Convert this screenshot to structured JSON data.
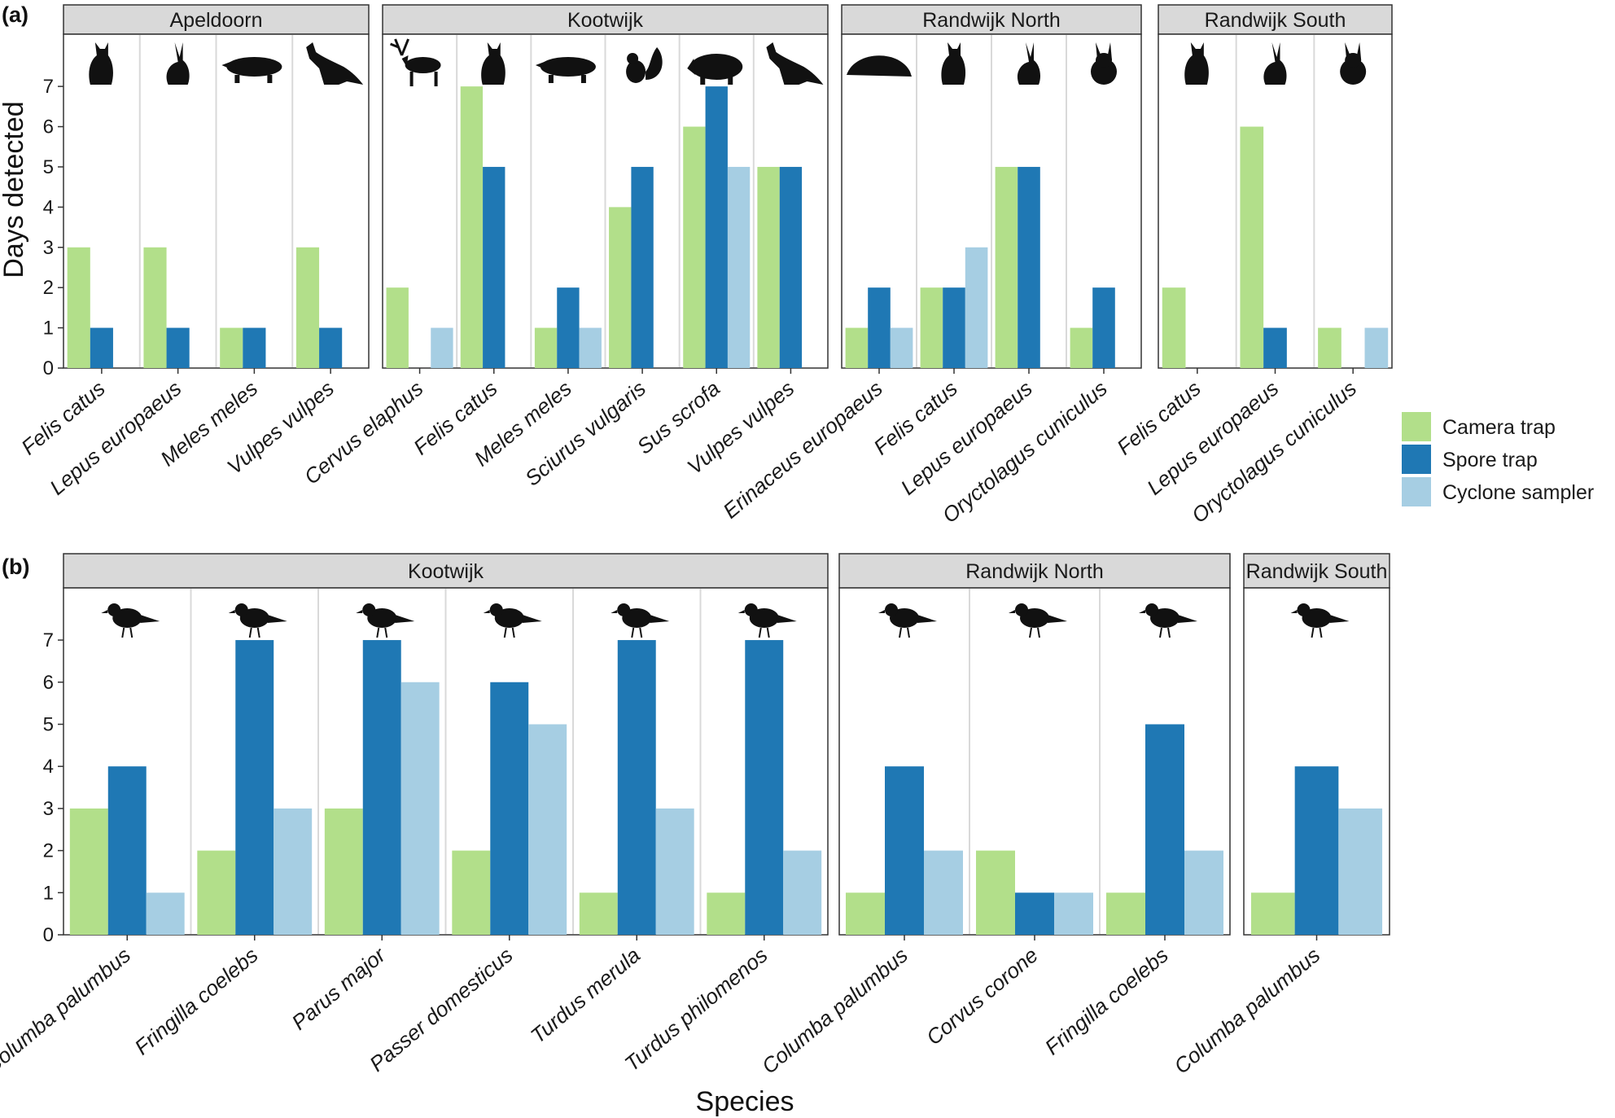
{
  "colors": {
    "camera": "#b2df8a",
    "spore": "#1f78b4",
    "cyclone": "#a6cee3",
    "strip_bg": "#d9d9d9",
    "grid": "#d9d9d9"
  },
  "legend": {
    "items": [
      {
        "name": "Camera trap",
        "color": "#b2df8a"
      },
      {
        "name": "Spore trap",
        "color": "#1f78b4"
      },
      {
        "name": "Cyclone sampler",
        "color": "#a6cee3"
      }
    ]
  },
  "axes": {
    "y_title": "Days detected",
    "x_title": "Species"
  },
  "chart_data": [
    {
      "type": "bar",
      "panel_tag": "(a)",
      "ylabel": "Days detected",
      "ylim": [
        0,
        7
      ],
      "yticks": [
        0,
        1,
        2,
        3,
        4,
        5,
        6,
        7
      ],
      "series_names": [
        "Camera trap",
        "Spore trap",
        "Cyclone sampler"
      ],
      "facets": [
        {
          "site": "Apeldoorn",
          "categories": [
            "Felis catus",
            "Lepus europaeus",
            "Meles meles",
            "Vulpes vulpes"
          ],
          "icons": [
            "cat-icon",
            "hare-icon",
            "badger-icon",
            "fox-icon"
          ],
          "series": [
            {
              "name": "Camera trap",
              "values": [
                3,
                3,
                1,
                3
              ]
            },
            {
              "name": "Spore trap",
              "values": [
                1,
                1,
                1,
                1
              ]
            },
            {
              "name": "Cyclone sampler",
              "values": [
                0,
                0,
                0,
                0
              ]
            }
          ]
        },
        {
          "site": "Kootwijk",
          "categories": [
            "Cervus elaphus",
            "Felis catus",
            "Meles meles",
            "Sciurus vulgaris",
            "Sus scrofa",
            "Vulpes vulpes"
          ],
          "icons": [
            "deer-icon",
            "cat-icon",
            "badger-icon",
            "squirrel-icon",
            "boar-icon",
            "fox-icon"
          ],
          "series": [
            {
              "name": "Camera trap",
              "values": [
                2,
                7,
                1,
                4,
                6,
                5
              ]
            },
            {
              "name": "Spore trap",
              "values": [
                0,
                5,
                2,
                5,
                7,
                5
              ]
            },
            {
              "name": "Cyclone sampler",
              "values": [
                1,
                0,
                1,
                0,
                5,
                0
              ]
            }
          ]
        },
        {
          "site": "Randwijk North",
          "categories": [
            "Erinaceus europaeus",
            "Felis catus",
            "Lepus europaeus",
            "Oryctolagus cuniculus"
          ],
          "icons": [
            "hedgehog-icon",
            "cat-icon",
            "hare-icon",
            "rabbit-icon"
          ],
          "series": [
            {
              "name": "Camera trap",
              "values": [
                1,
                2,
                5,
                1
              ]
            },
            {
              "name": "Spore trap",
              "values": [
                2,
                2,
                5,
                2
              ]
            },
            {
              "name": "Cyclone sampler",
              "values": [
                1,
                3,
                0,
                0
              ]
            }
          ]
        },
        {
          "site": "Randwijk South",
          "categories": [
            "Felis catus",
            "Lepus europaeus",
            "Oryctolagus cuniculus"
          ],
          "icons": [
            "cat-icon",
            "hare-icon",
            "rabbit-icon"
          ],
          "series": [
            {
              "name": "Camera trap",
              "values": [
                2,
                6,
                1
              ]
            },
            {
              "name": "Spore trap",
              "values": [
                0,
                1,
                0
              ]
            },
            {
              "name": "Cyclone sampler",
              "values": [
                0,
                0,
                1
              ]
            }
          ]
        }
      ]
    },
    {
      "type": "bar",
      "panel_tag": "(b)",
      "xlabel": "Species",
      "ylim": [
        0,
        7
      ],
      "yticks": [
        0,
        1,
        2,
        3,
        4,
        5,
        6,
        7
      ],
      "series_names": [
        "Camera trap",
        "Spore trap",
        "Cyclone sampler"
      ],
      "facets": [
        {
          "site": "Kootwijk",
          "categories": [
            "Columba palumbus",
            "Fringilla coelebs",
            "Parus major",
            "Passer domesticus",
            "Turdus merula",
            "Turdus philomenos"
          ],
          "icons": [
            "pigeon-icon",
            "finch-icon",
            "tit-icon",
            "sparrow-icon",
            "blackbird-icon",
            "thrush-icon"
          ],
          "series": [
            {
              "name": "Camera trap",
              "values": [
                3,
                2,
                3,
                2,
                1,
                1
              ]
            },
            {
              "name": "Spore trap",
              "values": [
                4,
                7,
                7,
                6,
                7,
                7
              ]
            },
            {
              "name": "Cyclone sampler",
              "values": [
                1,
                3,
                6,
                5,
                3,
                2
              ]
            }
          ]
        },
        {
          "site": "Randwijk North",
          "categories": [
            "Columba palumbus",
            "Corvus corone",
            "Fringilla coelebs"
          ],
          "icons": [
            "pigeon-icon",
            "crow-icon",
            "finch-icon"
          ],
          "series": [
            {
              "name": "Camera trap",
              "values": [
                1,
                2,
                1
              ]
            },
            {
              "name": "Spore trap",
              "values": [
                4,
                1,
                5
              ]
            },
            {
              "name": "Cyclone sampler",
              "values": [
                2,
                1,
                2
              ]
            }
          ]
        },
        {
          "site": "Randwijk South",
          "categories": [
            "Columba palumbus"
          ],
          "icons": [
            "pigeon-icon"
          ],
          "series": [
            {
              "name": "Camera trap",
              "values": [
                1
              ]
            },
            {
              "name": "Spore trap",
              "values": [
                4
              ]
            },
            {
              "name": "Cyclone sampler",
              "values": [
                3
              ]
            }
          ]
        }
      ]
    }
  ]
}
